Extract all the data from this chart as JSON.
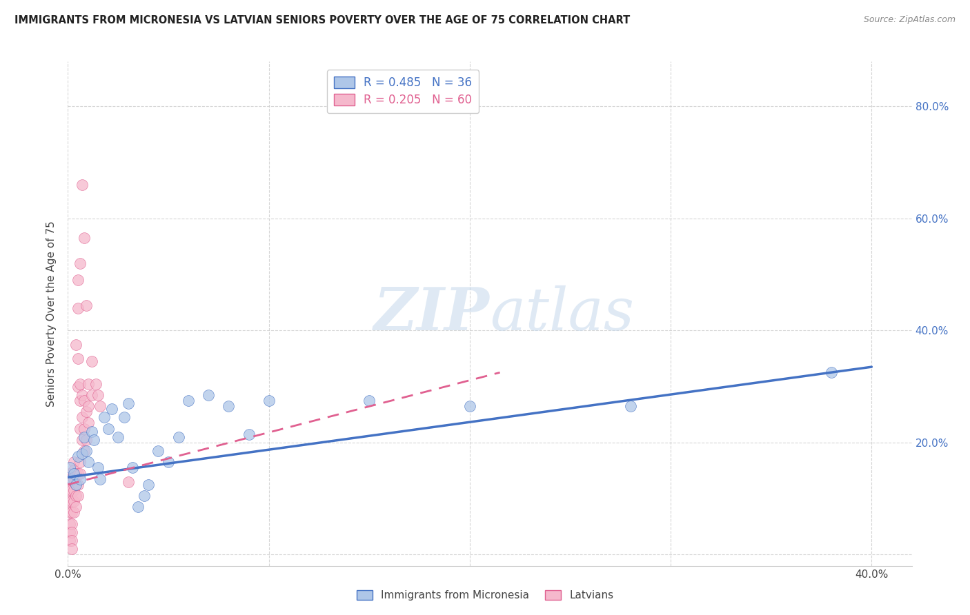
{
  "title": "IMMIGRANTS FROM MICRONESIA VS LATVIAN SENIORS POVERTY OVER THE AGE OF 75 CORRELATION CHART",
  "source": "Source: ZipAtlas.com",
  "ylabel": "Seniors Poverty Over the Age of 75",
  "xlim": [
    0.0,
    0.42
  ],
  "ylim": [
    -0.02,
    0.88
  ],
  "yticks": [
    0.0,
    0.2,
    0.4,
    0.6,
    0.8
  ],
  "ytick_labels_right": [
    "",
    "20.0%",
    "40.0%",
    "60.0%",
    "80.0%"
  ],
  "xticks": [
    0.0,
    0.1,
    0.2,
    0.3,
    0.4
  ],
  "xtick_labels": [
    "0.0%",
    "",
    "",
    "",
    "40.0%"
  ],
  "blue_color": "#4472c4",
  "pink_color": "#e06090",
  "blue_fill": "#aec6e8",
  "pink_fill": "#f5b8cc",
  "watermark_color": "#c5d8ec",
  "blue_scatter": [
    [
      0.001,
      0.155
    ],
    [
      0.002,
      0.135
    ],
    [
      0.003,
      0.145
    ],
    [
      0.004,
      0.125
    ],
    [
      0.005,
      0.175
    ],
    [
      0.006,
      0.135
    ],
    [
      0.007,
      0.18
    ],
    [
      0.008,
      0.21
    ],
    [
      0.009,
      0.185
    ],
    [
      0.01,
      0.165
    ],
    [
      0.012,
      0.22
    ],
    [
      0.013,
      0.205
    ],
    [
      0.015,
      0.155
    ],
    [
      0.016,
      0.135
    ],
    [
      0.018,
      0.245
    ],
    [
      0.02,
      0.225
    ],
    [
      0.022,
      0.26
    ],
    [
      0.025,
      0.21
    ],
    [
      0.028,
      0.245
    ],
    [
      0.03,
      0.27
    ],
    [
      0.032,
      0.155
    ],
    [
      0.035,
      0.085
    ],
    [
      0.038,
      0.105
    ],
    [
      0.04,
      0.125
    ],
    [
      0.045,
      0.185
    ],
    [
      0.05,
      0.165
    ],
    [
      0.055,
      0.21
    ],
    [
      0.06,
      0.275
    ],
    [
      0.07,
      0.285
    ],
    [
      0.08,
      0.265
    ],
    [
      0.09,
      0.215
    ],
    [
      0.1,
      0.275
    ],
    [
      0.15,
      0.275
    ],
    [
      0.2,
      0.265
    ],
    [
      0.28,
      0.265
    ],
    [
      0.38,
      0.325
    ]
  ],
  "pink_scatter": [
    [
      0.001,
      0.145
    ],
    [
      0.001,
      0.135
    ],
    [
      0.001,
      0.115
    ],
    [
      0.001,
      0.095
    ],
    [
      0.001,
      0.075
    ],
    [
      0.001,
      0.055
    ],
    [
      0.001,
      0.04
    ],
    [
      0.001,
      0.025
    ],
    [
      0.002,
      0.135
    ],
    [
      0.002,
      0.115
    ],
    [
      0.002,
      0.095
    ],
    [
      0.002,
      0.075
    ],
    [
      0.002,
      0.055
    ],
    [
      0.002,
      0.04
    ],
    [
      0.002,
      0.025
    ],
    [
      0.002,
      0.01
    ],
    [
      0.003,
      0.165
    ],
    [
      0.003,
      0.15
    ],
    [
      0.003,
      0.135
    ],
    [
      0.003,
      0.115
    ],
    [
      0.003,
      0.095
    ],
    [
      0.003,
      0.075
    ],
    [
      0.004,
      0.375
    ],
    [
      0.004,
      0.145
    ],
    [
      0.004,
      0.125
    ],
    [
      0.004,
      0.105
    ],
    [
      0.004,
      0.085
    ],
    [
      0.005,
      0.49
    ],
    [
      0.005,
      0.44
    ],
    [
      0.005,
      0.35
    ],
    [
      0.005,
      0.3
    ],
    [
      0.005,
      0.145
    ],
    [
      0.005,
      0.125
    ],
    [
      0.005,
      0.105
    ],
    [
      0.006,
      0.52
    ],
    [
      0.006,
      0.305
    ],
    [
      0.006,
      0.275
    ],
    [
      0.006,
      0.225
    ],
    [
      0.006,
      0.165
    ],
    [
      0.006,
      0.145
    ],
    [
      0.007,
      0.66
    ],
    [
      0.007,
      0.285
    ],
    [
      0.007,
      0.245
    ],
    [
      0.007,
      0.205
    ],
    [
      0.008,
      0.565
    ],
    [
      0.008,
      0.275
    ],
    [
      0.008,
      0.225
    ],
    [
      0.008,
      0.185
    ],
    [
      0.009,
      0.445
    ],
    [
      0.009,
      0.255
    ],
    [
      0.009,
      0.205
    ],
    [
      0.01,
      0.305
    ],
    [
      0.01,
      0.265
    ],
    [
      0.01,
      0.235
    ],
    [
      0.012,
      0.345
    ],
    [
      0.012,
      0.285
    ],
    [
      0.014,
      0.305
    ],
    [
      0.015,
      0.285
    ],
    [
      0.016,
      0.265
    ],
    [
      0.03,
      0.13
    ]
  ],
  "blue_line": [
    [
      0.0,
      0.138
    ],
    [
      0.4,
      0.335
    ]
  ],
  "pink_line_x": [
    0.0,
    0.215
  ],
  "pink_line_y": [
    0.125,
    0.325
  ],
  "legend_blue_label": "R = 0.485   N = 36",
  "legend_pink_label": "R = 0.205   N = 60",
  "bottom_legend_blue": "Immigrants from Micronesia",
  "bottom_legend_pink": "Latvians"
}
